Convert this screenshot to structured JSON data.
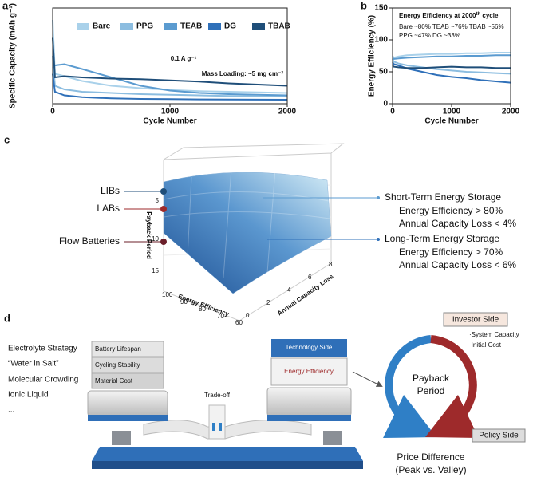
{
  "chart_data": [
    {
      "type": "line",
      "panel_label": "a",
      "xlabel": "Cycle Number",
      "ylabel": "Specific Capacity (mAh g⁻¹)",
      "x": [
        0,
        20,
        100,
        250,
        500,
        750,
        1000,
        1250,
        1500,
        1750,
        2000
      ],
      "xlim": [
        0,
        2000
      ],
      "xticks": [
        0,
        1000,
        2000
      ],
      "ylim": [
        0,
        800
      ],
      "legend": "top-left",
      "series": [
        {
          "name": "Bare",
          "color": "#a9d1ea",
          "values": [
            700,
            250,
            230,
            190,
            150,
            130,
            115,
            105,
            100,
            95,
            90
          ]
        },
        {
          "name": "PPG",
          "color": "#8cbde0",
          "values": [
            400,
            150,
            120,
            100,
            90,
            80,
            75,
            70,
            65,
            62,
            60
          ]
        },
        {
          "name": "TEAB",
          "color": "#5b9bd0",
          "values": [
            300,
            320,
            330,
            290,
            220,
            150,
            110,
            90,
            80,
            75,
            70
          ]
        },
        {
          "name": "DG",
          "color": "#2f70b9",
          "values": [
            250,
            100,
            70,
            55,
            45,
            40,
            38,
            36,
            35,
            34,
            33
          ]
        },
        {
          "name": "TBAB",
          "color": "#1f4e79",
          "values": [
            550,
            220,
            230,
            220,
            210,
            205,
            195,
            185,
            170,
            160,
            150
          ]
        }
      ],
      "annotations": [
        "0.1 A g⁻¹",
        "Mass Loading: ~5 mg cm⁻²"
      ]
    },
    {
      "type": "line",
      "panel_label": "b",
      "xlabel": "Cycle Number",
      "ylabel": "Energy Efficiency (%)",
      "x": [
        0,
        20,
        100,
        250,
        500,
        750,
        1000,
        1250,
        1500,
        1750,
        2000
      ],
      "xlim": [
        0,
        2000
      ],
      "xticks": [
        0,
        1000,
        2000
      ],
      "ylim": [
        0,
        150
      ],
      "yticks": [
        0,
        50,
        100,
        150
      ],
      "series": [
        {
          "name": "Bare",
          "color": "#a9d1ea",
          "values": [
            75,
            72,
            74,
            76,
            77,
            78,
            78,
            79,
            79,
            80,
            80
          ]
        },
        {
          "name": "PPG",
          "color": "#8cbde0",
          "values": [
            70,
            66,
            63,
            60,
            57,
            54,
            52,
            50,
            49,
            48,
            47
          ]
        },
        {
          "name": "TEAB",
          "color": "#5b9bd0",
          "values": [
            72,
            70,
            71,
            72,
            73,
            74,
            74,
            75,
            75,
            76,
            76
          ]
        },
        {
          "name": "DG",
          "color": "#2f70b9",
          "values": [
            65,
            62,
            60,
            55,
            50,
            45,
            42,
            40,
            37,
            35,
            33
          ]
        },
        {
          "name": "TBAB",
          "color": "#1f4e79",
          "values": [
            60,
            58,
            57,
            56,
            56,
            57,
            58,
            57,
            57,
            56,
            56
          ]
        }
      ],
      "note": {
        "title": "Energy Efficiency at 2000",
        "sup": "th",
        "after": " cycle",
        "lines": [
          "Bare ~80% TEAB ~76% TBAB ~56%",
          "PPG ~47% DG ~33%"
        ]
      }
    }
  ],
  "panel_c": {
    "label": "c",
    "batteries": [
      "LIBs",
      "LABs",
      "Flow Batteries"
    ],
    "z_axis": "Payback Period",
    "x_axis": "Energy Efficiency",
    "y_axis": "Annual Capacity Loss",
    "x_ticks": [
      "100",
      "90",
      "80",
      "70",
      "60"
    ],
    "y_ticks": [
      "0",
      "2",
      "4",
      "6",
      "8"
    ],
    "z_ticks": [
      "5",
      "10",
      "15"
    ],
    "short_term": {
      "title": "Short-Term Energy Storage",
      "lines": [
        "Energy Efficiency > 80%",
        "Annual Capacity Loss < 4%"
      ]
    },
    "long_term": {
      "title": "Long-Term Energy Storage",
      "lines": [
        "Energy Efficiency > 70%",
        "Annual Capacity Loss < 6%"
      ]
    }
  },
  "panel_d": {
    "label": "d",
    "strategies": [
      "Electrolyte Strategy",
      "“Water in Salt”",
      "Molecular Crowding",
      "Ionic Liquid",
      "..."
    ],
    "left_stack": [
      "Battery Lifespan",
      "Cycling Stability",
      "Material Cost"
    ],
    "trade_off": "Trade-off",
    "right_stack": [
      "Technology Side",
      "Energy Efficiency"
    ],
    "center": [
      "Payback",
      "Period"
    ],
    "investor": {
      "title": "Investor Side",
      "items": [
        "·System Capacity",
        "·Initial Cost"
      ]
    },
    "policy": "Policy Side",
    "price": [
      "Price Difference",
      "(Peak vs. Valley)"
    ]
  }
}
